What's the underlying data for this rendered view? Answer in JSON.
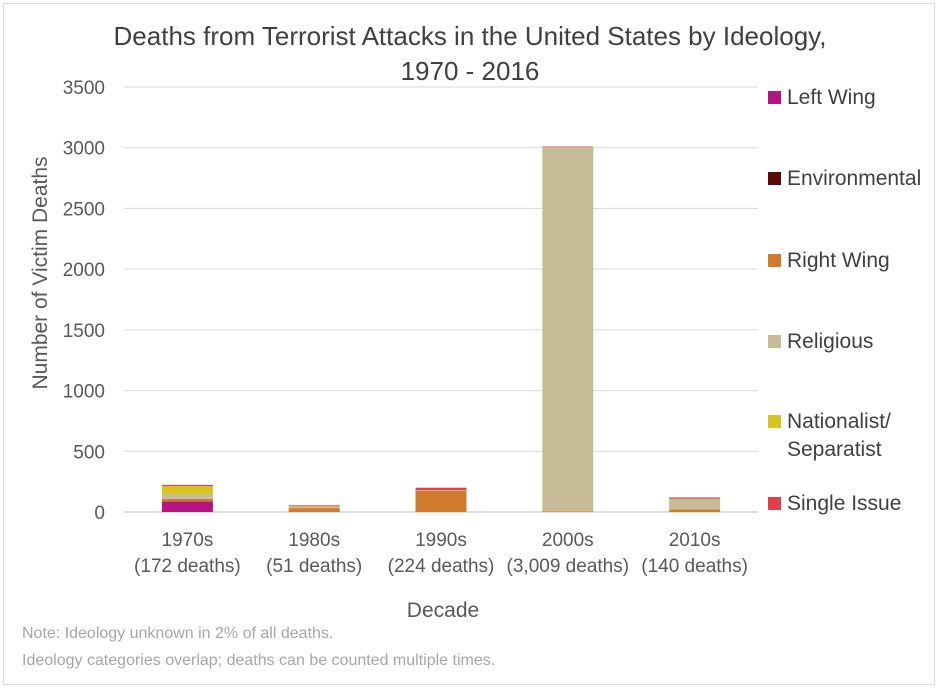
{
  "chart_data": {
    "type": "bar",
    "stacked": true,
    "title_lines": [
      "Deaths from Terrorist Attacks in the United States by Ideology,",
      "1970 - 2016"
    ],
    "xlabel": "Decade",
    "ylabel": "Number of Victim Deaths",
    "ylim": [
      0,
      3500
    ],
    "yticks": [
      "0",
      "500",
      "1000",
      "1500",
      "2000",
      "2500",
      "3000",
      "3500"
    ],
    "categories": [
      {
        "line1": "1970s",
        "line2": "(172 deaths)"
      },
      {
        "line1": "1980s",
        "line2": "(51 deaths)"
      },
      {
        "line1": "1990s",
        "line2": "(224 deaths)"
      },
      {
        "line1": "2000s",
        "line2": "(3,009 deaths)"
      },
      {
        "line1": "2010s",
        "line2": "(140 deaths)"
      }
    ],
    "series": [
      {
        "name": "Left Wing",
        "color": "#b5137e",
        "values": [
          85,
          2,
          0,
          0,
          0
        ]
      },
      {
        "name": "Environmental",
        "color": "#5a0a0a",
        "values": [
          3,
          0,
          0,
          0,
          0
        ]
      },
      {
        "name": "Right Wing",
        "color": "#d07a2e",
        "values": [
          20,
          30,
          175,
          5,
          20
        ]
      },
      {
        "name": "Religious",
        "color": "#c6bd98",
        "values": [
          40,
          10,
          5,
          3000,
          90
        ]
      },
      {
        "name": "Nationalist/ Separatist",
        "color": "#d8c41d",
        "values": [
          65,
          5,
          0,
          0,
          0
        ]
      },
      {
        "name": "Single Issue",
        "color": "#e0404a",
        "values": [
          10,
          8,
          20,
          5,
          10
        ]
      }
    ],
    "legend_placement": "right",
    "grid": true
  },
  "legend": [
    {
      "label": "Left Wing",
      "color": "#b5137e"
    },
    {
      "label": "Environmental",
      "color": "#5a0a0a"
    },
    {
      "label": "Right Wing",
      "color": "#d07a2e"
    },
    {
      "label": "Religious",
      "color": "#c6bd98"
    },
    {
      "label": "Nationalist/\nSeparatist",
      "color": "#d8c41d"
    },
    {
      "label": "Single Issue",
      "color": "#e0404a"
    }
  ],
  "notes": [
    "Note: Ideology unknown in 2% of all deaths.",
    "Ideology categories overlap; deaths can be counted multiple times."
  ]
}
